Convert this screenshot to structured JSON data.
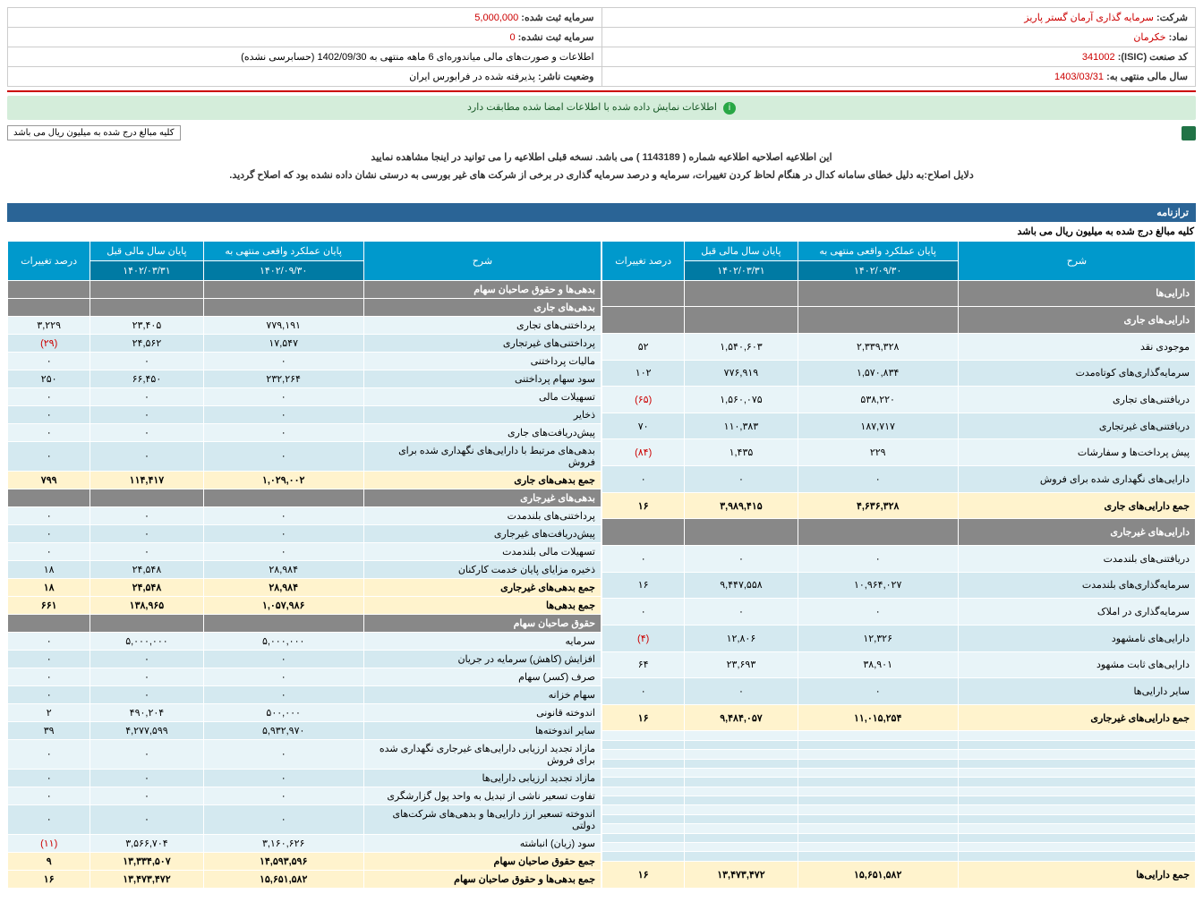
{
  "info": {
    "company_label": "شرکت:",
    "company_value": "سرمایه گذاری آرمان گستر پاریز",
    "symbol_label": "نماد:",
    "symbol_value": "خکرمان",
    "isic_label": "کد صنعت (ISIC):",
    "isic_value": "341002",
    "fy_label": "سال مالی منتهی به:",
    "fy_value": "1403/03/31",
    "capital_reg_label": "سرمایه ثبت شده:",
    "capital_reg_value": "5,000,000",
    "capital_unreg_label": "سرمایه ثبت نشده:",
    "capital_unreg_value": "0",
    "report_label": "اطلاعات و صورت‌های مالی میاندوره‌ای 6 ماهه منتهی به 1402/09/30 (حسابرسی نشده)",
    "publisher_label": "وضعیت ناشر:",
    "publisher_value": "پذیرفته شده در فرابورس ایران"
  },
  "success_msg": "اطلاعات نمایش داده شده با اطلاعات امضا شده مطابقت دارد",
  "million_label": "کلیه مبالغ درج شده به میلیون ریال می باشد",
  "notice_main": "این اطلاعیه اصلاحیه اطلاعیه شماره ( 1143189 ) می باشد. نسخه قبلی اطلاعیه را می توانید در اینجا مشاهده نمایید",
  "notice_link": "اینجا",
  "notice_reason": "دلایل اصلاح:به دلیل خطای سامانه کدال در هنگام لحاظ کردن تغییرات، سرمایه و درصد سرمایه گذاری در برخی از شرکت های غیر بورسی به درستی نشان داده نشده بود که اصلاح گردید.",
  "balance_title": "ترازنامه",
  "balance_sub": "کلیه مبالغ درج شده به میلیون ریال می باشد",
  "headers": {
    "desc": "شرح",
    "actual": "پایان عملکرد واقعی منتهی به",
    "prev": "پایان سال مالی قبل",
    "pct": "درصد تغییرات",
    "date_actual": "۱۴۰۲/۰۹/۳۰",
    "date_prev": "۱۴۰۲/۰۳/۳۱"
  },
  "right_rows": [
    {
      "t": "h",
      "c": [
        "دارایی‌ها",
        "",
        "",
        ""
      ]
    },
    {
      "t": "h",
      "c": [
        "دارایی‌های جاری",
        "",
        "",
        ""
      ]
    },
    {
      "t": "e",
      "c": [
        "موجودی نقد",
        "۲,۳۳۹,۳۲۸",
        "۱,۵۴۰,۶۰۳",
        "۵۲"
      ]
    },
    {
      "t": "o",
      "c": [
        "سرمایه‌گذاری‌های کوتاه‌مدت",
        "۱,۵۷۰,۸۳۴",
        "۷۷۶,۹۱۹",
        "۱۰۲"
      ]
    },
    {
      "t": "e",
      "c": [
        "دریافتنی‌های تجاری",
        "۵۳۸,۲۲۰",
        "۱,۵۶۰,۰۷۵",
        "(۶۵)"
      ],
      "neg": [
        3
      ]
    },
    {
      "t": "o",
      "c": [
        "دریافتنی‌های غیرتجاری",
        "۱۸۷,۷۱۷",
        "۱۱۰,۳۸۳",
        "۷۰"
      ]
    },
    {
      "t": "e",
      "c": [
        "پیش پرداخت‌ها و سفارشات",
        "۲۲۹",
        "۱,۴۳۵",
        "(۸۴)"
      ],
      "neg": [
        3
      ]
    },
    {
      "t": "o",
      "c": [
        "دارایی‌های نگهداری شده برای فروش",
        "۰",
        "۰",
        "۰"
      ]
    },
    {
      "t": "s",
      "c": [
        "جمع دارایی‌های جاری",
        "۴,۶۳۶,۳۲۸",
        "۳,۹۸۹,۴۱۵",
        "۱۶"
      ]
    },
    {
      "t": "h",
      "c": [
        "دارایی‌های غیرجاری",
        "",
        "",
        ""
      ]
    },
    {
      "t": "e",
      "c": [
        "دریافتنی‌های بلندمدت",
        "۰",
        "۰",
        "۰"
      ]
    },
    {
      "t": "o",
      "c": [
        "سرمایه‌گذاری‌های بلندمدت",
        "۱۰,۹۶۴,۰۲۷",
        "۹,۴۴۷,۵۵۸",
        "۱۶"
      ]
    },
    {
      "t": "e",
      "c": [
        "سرمایه‌گذاری در املاک",
        "۰",
        "۰",
        "۰"
      ]
    },
    {
      "t": "o",
      "c": [
        "دارایی‌های نامشهود",
        "۱۲,۳۲۶",
        "۱۲,۸۰۶",
        "(۴)"
      ],
      "neg": [
        3
      ]
    },
    {
      "t": "e",
      "c": [
        "دارایی‌های ثابت مشهود",
        "۳۸,۹۰۱",
        "۲۳,۶۹۳",
        "۶۴"
      ]
    },
    {
      "t": "o",
      "c": [
        "سایر دارایی‌ها",
        "۰",
        "۰",
        "۰"
      ]
    },
    {
      "t": "s",
      "c": [
        "جمع دارایی‌های غیرجاری",
        "۱۱,۰۱۵,۲۵۴",
        "۹,۴۸۴,۰۵۷",
        "۱۶"
      ]
    },
    {
      "t": "e",
      "c": [
        "",
        "",
        "",
        ""
      ]
    },
    {
      "t": "o",
      "c": [
        "",
        "",
        "",
        ""
      ]
    },
    {
      "t": "e",
      "c": [
        "",
        "",
        "",
        ""
      ]
    },
    {
      "t": "o",
      "c": [
        "",
        "",
        "",
        ""
      ]
    },
    {
      "t": "e",
      "c": [
        "",
        "",
        "",
        ""
      ]
    },
    {
      "t": "o",
      "c": [
        "",
        "",
        "",
        ""
      ]
    },
    {
      "t": "e",
      "c": [
        "",
        "",
        "",
        ""
      ]
    },
    {
      "t": "o",
      "c": [
        "",
        "",
        "",
        ""
      ]
    },
    {
      "t": "e",
      "c": [
        "",
        "",
        "",
        ""
      ]
    },
    {
      "t": "o",
      "c": [
        "",
        "",
        "",
        ""
      ]
    },
    {
      "t": "e",
      "c": [
        "",
        "",
        "",
        ""
      ]
    },
    {
      "t": "o",
      "c": [
        "",
        "",
        "",
        ""
      ]
    },
    {
      "t": "e",
      "c": [
        "",
        "",
        "",
        ""
      ]
    },
    {
      "t": "o",
      "c": [
        "",
        "",
        "",
        ""
      ]
    },
    {
      "t": "s",
      "c": [
        "جمع دارایی‌ها",
        "۱۵,۶۵۱,۵۸۲",
        "۱۳,۴۷۳,۴۷۲",
        "۱۶"
      ]
    }
  ],
  "left_rows": [
    {
      "t": "h",
      "c": [
        "بدهی‌ها و حقوق صاحبان سهام",
        "",
        "",
        ""
      ]
    },
    {
      "t": "h",
      "c": [
        "بدهی‌های جاری",
        "",
        "",
        ""
      ]
    },
    {
      "t": "e",
      "c": [
        "پرداختنی‌های تجاری",
        "۷۷۹,۱۹۱",
        "۲۳,۴۰۵",
        "۳,۲۲۹"
      ]
    },
    {
      "t": "o",
      "c": [
        "پرداختنی‌های غیرتجاری",
        "۱۷,۵۴۷",
        "۲۴,۵۶۲",
        "(۲۹)"
      ],
      "neg": [
        3
      ]
    },
    {
      "t": "e",
      "c": [
        "مالیات پرداختنی",
        "۰",
        "۰",
        "۰"
      ]
    },
    {
      "t": "o",
      "c": [
        "سود سهام پرداختنی",
        "۲۳۲,۲۶۴",
        "۶۶,۴۵۰",
        "۲۵۰"
      ]
    },
    {
      "t": "e",
      "c": [
        "تسهیلات مالی",
        "۰",
        "۰",
        "۰"
      ]
    },
    {
      "t": "o",
      "c": [
        "ذخایر",
        "۰",
        "۰",
        "۰"
      ]
    },
    {
      "t": "e",
      "c": [
        "پیش‌دریافت‌های جاری",
        "۰",
        "۰",
        "۰"
      ]
    },
    {
      "t": "o",
      "c": [
        "بدهی‌های مرتبط با دارایی‌های نگهداری شده برای فروش",
        "۰",
        "۰",
        "۰"
      ]
    },
    {
      "t": "s",
      "c": [
        "جمع بدهی‌های جاری",
        "۱,۰۲۹,۰۰۲",
        "۱۱۴,۴۱۷",
        "۷۹۹"
      ]
    },
    {
      "t": "h",
      "c": [
        "بدهی‌های غیرجاری",
        "",
        "",
        ""
      ]
    },
    {
      "t": "e",
      "c": [
        "پرداختنی‌های بلندمدت",
        "۰",
        "۰",
        "۰"
      ]
    },
    {
      "t": "o",
      "c": [
        "پیش‌دریافت‌های غیرجاری",
        "۰",
        "۰",
        "۰"
      ]
    },
    {
      "t": "e",
      "c": [
        "تسهیلات مالی بلندمدت",
        "۰",
        "۰",
        "۰"
      ]
    },
    {
      "t": "o",
      "c": [
        "ذخیره مزایای پایان خدمت کارکنان",
        "۲۸,۹۸۴",
        "۲۴,۵۴۸",
        "۱۸"
      ]
    },
    {
      "t": "s",
      "c": [
        "جمع بدهی‌های غیرجاری",
        "۲۸,۹۸۴",
        "۲۴,۵۴۸",
        "۱۸"
      ]
    },
    {
      "t": "s",
      "c": [
        "جمع بدهی‌ها",
        "۱,۰۵۷,۹۸۶",
        "۱۳۸,۹۶۵",
        "۶۶۱"
      ]
    },
    {
      "t": "h",
      "c": [
        "حقوق صاحبان سهام",
        "",
        "",
        ""
      ]
    },
    {
      "t": "e",
      "c": [
        "سرمایه",
        "۵,۰۰۰,۰۰۰",
        "۵,۰۰۰,۰۰۰",
        "۰"
      ]
    },
    {
      "t": "o",
      "c": [
        "افزایش (کاهش) سرمایه در جریان",
        "۰",
        "۰",
        "۰"
      ]
    },
    {
      "t": "e",
      "c": [
        "صرف (کسر) سهام",
        "۰",
        "۰",
        "۰"
      ]
    },
    {
      "t": "o",
      "c": [
        "سهام خزانه",
        "۰",
        "۰",
        "۰"
      ]
    },
    {
      "t": "e",
      "c": [
        "اندوخته قانونی",
        "۵۰۰,۰۰۰",
        "۴۹۰,۲۰۴",
        "۲"
      ]
    },
    {
      "t": "o",
      "c": [
        "سایر اندوخته‌ها",
        "۵,۹۳۲,۹۷۰",
        "۴,۲۷۷,۵۹۹",
        "۳۹"
      ]
    },
    {
      "t": "e",
      "c": [
        "مازاد تجدید ارزیابی دارایی‌های غیرجاری نگهداری شده برای فروش",
        "۰",
        "۰",
        "۰"
      ]
    },
    {
      "t": "o",
      "c": [
        "مازاد تجدید ارزیابی دارایی‌ها",
        "۰",
        "۰",
        "۰"
      ]
    },
    {
      "t": "e",
      "c": [
        "تفاوت تسعیر ناشی از تبدیل به واحد پول گزارشگری",
        "۰",
        "۰",
        "۰"
      ]
    },
    {
      "t": "o",
      "c": [
        "اندوخته تسعیر ارز دارایی‌ها و بدهی‌های شرکت‌های دولتی",
        "۰",
        "۰",
        "۰"
      ]
    },
    {
      "t": "e",
      "c": [
        "سود (زیان) انباشته",
        "۳,۱۶۰,۶۲۶",
        "۳,۵۶۶,۷۰۴",
        "(۱۱)"
      ],
      "neg": [
        3
      ]
    },
    {
      "t": "s",
      "c": [
        "جمع حقوق صاحبان سهام",
        "۱۴,۵۹۳,۵۹۶",
        "۱۳,۳۳۴,۵۰۷",
        "۹"
      ]
    },
    {
      "t": "s",
      "c": [
        "جمع بدهی‌ها و حقوق صاحبان سهام",
        "۱۵,۶۵۱,۵۸۲",
        "۱۳,۴۷۳,۴۷۲",
        "۱۶"
      ]
    }
  ]
}
